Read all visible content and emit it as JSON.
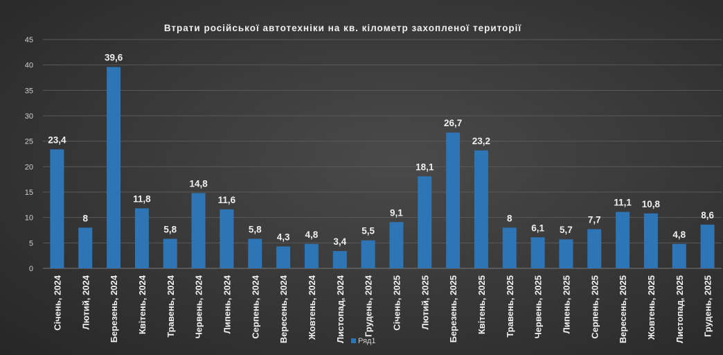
{
  "chart_data": {
    "type": "bar",
    "title": "Втрати російської автотехніки  на кв. кілометр захопленої території",
    "xlabel": "",
    "ylabel": "",
    "ylim": [
      0,
      45
    ],
    "yticks": [
      0,
      5,
      10,
      15,
      20,
      25,
      30,
      35,
      40,
      45
    ],
    "grid": true,
    "legend_position": "bottom",
    "bar_color": "#2e75b6",
    "categories": [
      "Січень, 2024",
      "Лютий, 2024",
      "Березень, 2024",
      "Квітень, 2024",
      "Травень, 2024",
      "Червень, 2024",
      "Липень, 2024",
      "Серпень, 2024",
      "Вересень, 2024",
      "Жовтень, 2024",
      "Листопад, 2024",
      "Грудень, 2024",
      "Січень, 2025",
      "Лютий, 2025",
      "Березень, 2025",
      "Квітень, 2025",
      "Травень, 2025",
      "Червень, 2025",
      "Липень, 2025",
      "Серпень, 2025",
      "Вересень, 2025",
      "Жовтень, 2025",
      "Листопад, 2025",
      "Грудень, 2025"
    ],
    "series": [
      {
        "name": "Ряд1",
        "values": [
          23.4,
          8,
          39.6,
          11.8,
          5.8,
          14.8,
          11.6,
          5.8,
          4.3,
          4.8,
          3.4,
          5.5,
          9.1,
          18.1,
          26.7,
          23.2,
          8,
          6.1,
          5.7,
          7.7,
          11.1,
          10.8,
          4.8,
          8.6
        ],
        "labels": [
          "23,4",
          "8",
          "39,6",
          "11,8",
          "5,8",
          "14,8",
          "11,6",
          "5,8",
          "4,3",
          "4,8",
          "3,4",
          "5,5",
          "9,1",
          "18,1",
          "26,7",
          "23,2",
          "8",
          "6,1",
          "5,7",
          "7,7",
          "11,1",
          "10,8",
          "4,8",
          "8,6"
        ]
      }
    ]
  }
}
